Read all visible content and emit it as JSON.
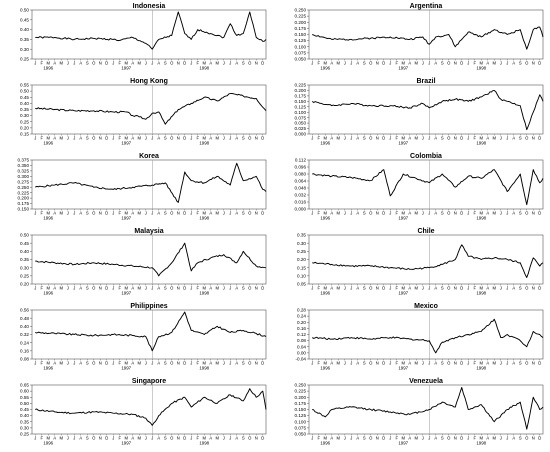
{
  "chart_data": [
    {
      "type": "line",
      "title": "Indonesia",
      "yticks": [
        "0.50",
        "0.45",
        "0.40",
        "0.35",
        "0.30",
        "0.25"
      ],
      "ylim": [
        0.25,
        0.5
      ],
      "months": [
        "J",
        "F",
        "M",
        "A",
        "M",
        "J",
        "J",
        "A",
        "S",
        "O",
        "N",
        "D",
        "J",
        "F",
        "M",
        "A",
        "M",
        "J",
        "J",
        "A",
        "S",
        "O",
        "N",
        "D",
        "J",
        "F",
        "M",
        "A",
        "M",
        "J",
        "J",
        "A",
        "S",
        "O",
        "N",
        "D"
      ],
      "years": [
        "1996",
        "1997",
        "1998"
      ],
      "x": [
        0,
        3,
        6,
        9,
        12,
        13,
        15,
        17,
        18,
        19,
        21,
        22,
        23,
        24,
        25,
        27,
        29,
        30,
        31,
        32,
        33,
        34,
        35,
        35.5
      ],
      "values": [
        0.36,
        0.36,
        0.35,
        0.355,
        0.35,
        0.345,
        0.36,
        0.33,
        0.3,
        0.35,
        0.37,
        0.49,
        0.38,
        0.35,
        0.4,
        0.38,
        0.36,
        0.43,
        0.37,
        0.38,
        0.49,
        0.36,
        0.34,
        0.35
      ]
    },
    {
      "type": "line",
      "title": "Argentina",
      "yticks": [
        "0.250",
        "0.225",
        "0.200",
        "0.175",
        "0.150",
        "0.125",
        "0.100",
        "0.075",
        "0.050"
      ],
      "ylim": [
        0.05,
        0.25
      ],
      "months": [
        "J",
        "F",
        "M",
        "A",
        "M",
        "J",
        "J",
        "A",
        "S",
        "O",
        "N",
        "D",
        "J",
        "F",
        "M",
        "A",
        "M",
        "J",
        "J",
        "A",
        "S",
        "O",
        "N",
        "D",
        "J",
        "F",
        "M",
        "A",
        "M",
        "J",
        "J",
        "A",
        "S",
        "O",
        "N",
        "D"
      ],
      "years": [
        "1996",
        "1997",
        "1998"
      ],
      "x": [
        0,
        3,
        6,
        9,
        12,
        15,
        17,
        18,
        19,
        21,
        22,
        24,
        26,
        28,
        30,
        32,
        33,
        34,
        35,
        35.5
      ],
      "values": [
        0.15,
        0.13,
        0.13,
        0.135,
        0.14,
        0.13,
        0.14,
        0.11,
        0.14,
        0.15,
        0.1,
        0.16,
        0.14,
        0.17,
        0.15,
        0.17,
        0.09,
        0.17,
        0.18,
        0.14
      ]
    },
    {
      "type": "line",
      "title": "Hong Kong",
      "yticks": [
        "0.55",
        "0.50",
        "0.45",
        "0.40",
        "0.35",
        "0.30",
        "0.25",
        "0.20",
        "0.15"
      ],
      "ylim": [
        0.15,
        0.55
      ],
      "months": [
        "J",
        "F",
        "M",
        "A",
        "M",
        "J",
        "J",
        "A",
        "S",
        "O",
        "N",
        "D",
        "J",
        "F",
        "M",
        "A",
        "M",
        "J",
        "J",
        "A",
        "S",
        "O",
        "N",
        "D",
        "J",
        "F",
        "M",
        "A",
        "M",
        "J",
        "J",
        "A",
        "S",
        "O",
        "N",
        "D"
      ],
      "years": [
        "1996",
        "1997",
        "1998"
      ],
      "x": [
        0,
        3,
        6,
        9,
        12,
        14,
        15,
        16,
        17,
        18,
        19,
        20,
        22,
        24,
        26,
        28,
        30,
        32,
        34,
        35.5
      ],
      "values": [
        0.36,
        0.35,
        0.34,
        0.34,
        0.33,
        0.33,
        0.3,
        0.29,
        0.27,
        0.32,
        0.33,
        0.23,
        0.35,
        0.4,
        0.45,
        0.42,
        0.48,
        0.46,
        0.44,
        0.34
      ]
    },
    {
      "type": "line",
      "title": "Brazil",
      "yticks": [
        "0.225",
        "0.200",
        "0.175",
        "0.150",
        "0.125",
        "0.100",
        "0.075",
        "0.050",
        "0.025",
        "0.000"
      ],
      "ylim": [
        0.0,
        0.225
      ],
      "months": [
        "J",
        "F",
        "M",
        "A",
        "M",
        "J",
        "J",
        "A",
        "S",
        "O",
        "N",
        "D",
        "J",
        "F",
        "M",
        "A",
        "M",
        "J",
        "J",
        "A",
        "S",
        "O",
        "N",
        "D",
        "J",
        "F",
        "M",
        "A",
        "M",
        "J",
        "J",
        "A",
        "S",
        "O",
        "N",
        "D"
      ],
      "years": [
        "1996",
        "1997",
        "1998"
      ],
      "x": [
        0,
        3,
        6,
        9,
        12,
        15,
        17,
        18,
        20,
        22,
        24,
        26,
        28,
        29,
        30,
        32,
        33,
        34,
        35,
        35.5
      ],
      "values": [
        0.15,
        0.13,
        0.14,
        0.13,
        0.13,
        0.12,
        0.14,
        0.12,
        0.15,
        0.16,
        0.15,
        0.17,
        0.2,
        0.16,
        0.15,
        0.13,
        0.02,
        0.1,
        0.18,
        0.15
      ]
    },
    {
      "type": "line",
      "title": "Korea",
      "yticks": [
        "0.375",
        "0.350",
        "0.325",
        "0.300",
        "0.275",
        "0.250",
        "0.225",
        "0.200",
        "0.175",
        "0.150"
      ],
      "ylim": [
        0.15,
        0.375
      ],
      "months": [
        "J",
        "F",
        "M",
        "A",
        "M",
        "J",
        "J",
        "A",
        "S",
        "O",
        "N",
        "D",
        "J",
        "F",
        "M",
        "A",
        "M",
        "J",
        "J",
        "A",
        "S",
        "O",
        "N",
        "D",
        "J",
        "F",
        "M",
        "A",
        "M",
        "J",
        "J",
        "A",
        "S",
        "O",
        "N",
        "D"
      ],
      "years": [
        "1996",
        "1997",
        "1998"
      ],
      "x": [
        0,
        3,
        6,
        9,
        12,
        15,
        18,
        20,
        22,
        23,
        24,
        26,
        28,
        30,
        31,
        32,
        34,
        35,
        35.5
      ],
      "values": [
        0.25,
        0.26,
        0.27,
        0.25,
        0.24,
        0.25,
        0.26,
        0.27,
        0.18,
        0.32,
        0.28,
        0.27,
        0.3,
        0.26,
        0.36,
        0.28,
        0.3,
        0.24,
        0.23
      ]
    },
    {
      "type": "line",
      "title": "Colombia",
      "yticks": [
        "0.112",
        "0.096",
        "0.080",
        "0.064",
        "0.048",
        "0.032",
        "0.016",
        "0.000"
      ],
      "ylim": [
        0.0,
        0.112
      ],
      "months": [
        "J",
        "F",
        "M",
        "A",
        "M",
        "J",
        "J",
        "A",
        "S",
        "O",
        "N",
        "D",
        "J",
        "F",
        "M",
        "A",
        "M",
        "J",
        "J",
        "A",
        "S",
        "O",
        "N",
        "D",
        "J",
        "F",
        "M",
        "A",
        "M",
        "J",
        "J",
        "A",
        "S",
        "O",
        "N",
        "D"
      ],
      "years": [
        "1996",
        "1997",
        "1998"
      ],
      "x": [
        0,
        3,
        6,
        9,
        11,
        12,
        14,
        16,
        18,
        20,
        22,
        24,
        26,
        28,
        30,
        32,
        33,
        34,
        35,
        35.5
      ],
      "values": [
        0.08,
        0.075,
        0.072,
        0.065,
        0.09,
        0.03,
        0.08,
        0.07,
        0.06,
        0.08,
        0.05,
        0.075,
        0.07,
        0.09,
        0.04,
        0.08,
        0.01,
        0.09,
        0.06,
        0.07
      ]
    },
    {
      "type": "line",
      "title": "Malaysia",
      "yticks": [
        "0.50",
        "0.45",
        "0.40",
        "0.35",
        "0.30",
        "0.25",
        "0.20"
      ],
      "ylim": [
        0.2,
        0.5
      ],
      "months": [
        "J",
        "F",
        "M",
        "A",
        "M",
        "J",
        "J",
        "A",
        "S",
        "O",
        "N",
        "D",
        "J",
        "F",
        "M",
        "A",
        "M",
        "J",
        "J",
        "A",
        "S",
        "O",
        "N",
        "D",
        "J",
        "F",
        "M",
        "A",
        "M",
        "J",
        "J",
        "A",
        "S",
        "O",
        "N",
        "D"
      ],
      "years": [
        "1996",
        "1997",
        "1998"
      ],
      "x": [
        0,
        3,
        6,
        9,
        12,
        15,
        18,
        19,
        21,
        23,
        24,
        25,
        27,
        29,
        31,
        32,
        34,
        35.5
      ],
      "values": [
        0.34,
        0.33,
        0.32,
        0.33,
        0.32,
        0.31,
        0.3,
        0.25,
        0.33,
        0.45,
        0.28,
        0.33,
        0.36,
        0.38,
        0.33,
        0.4,
        0.31,
        0.3
      ]
    },
    {
      "type": "line",
      "title": "Chile",
      "yticks": [
        "0.35",
        "0.30",
        "0.25",
        "0.20",
        "0.15",
        "0.10",
        "0.05"
      ],
      "ylim": [
        0.05,
        0.35
      ],
      "months": [
        "J",
        "F",
        "M",
        "A",
        "M",
        "J",
        "J",
        "A",
        "S",
        "O",
        "N",
        "D",
        "J",
        "F",
        "M",
        "A",
        "M",
        "J",
        "J",
        "A",
        "S",
        "O",
        "N",
        "D",
        "J",
        "F",
        "M",
        "A",
        "M",
        "J",
        "J",
        "A",
        "S",
        "O",
        "N",
        "D"
      ],
      "years": [
        "1996",
        "1997",
        "1998"
      ],
      "x": [
        0,
        3,
        6,
        9,
        12,
        15,
        18,
        20,
        22,
        23,
        24,
        26,
        28,
        30,
        32,
        33,
        34,
        35,
        35.5
      ],
      "values": [
        0.18,
        0.17,
        0.16,
        0.16,
        0.15,
        0.14,
        0.15,
        0.17,
        0.2,
        0.29,
        0.22,
        0.2,
        0.21,
        0.2,
        0.18,
        0.09,
        0.21,
        0.16,
        0.18
      ]
    },
    {
      "type": "line",
      "title": "Philippines",
      "yticks": [
        "0.56",
        "0.48",
        "0.40",
        "0.32",
        "0.24",
        "0.16",
        "0.08"
      ],
      "ylim": [
        0.08,
        0.56
      ],
      "months": [
        "J",
        "F",
        "M",
        "A",
        "M",
        "J",
        "J",
        "A",
        "S",
        "O",
        "N",
        "D",
        "J",
        "F",
        "M",
        "A",
        "M",
        "J",
        "J",
        "A",
        "S",
        "O",
        "N",
        "D",
        "J",
        "F",
        "M",
        "A",
        "M",
        "J",
        "J",
        "A",
        "S",
        "O",
        "N",
        "D"
      ],
      "years": [
        "1996",
        "1997",
        "1998"
      ],
      "x": [
        0,
        3,
        6,
        9,
        12,
        15,
        17,
        18,
        19,
        21,
        23,
        24,
        26,
        28,
        30,
        32,
        34,
        35.5
      ],
      "values": [
        0.34,
        0.33,
        0.32,
        0.31,
        0.32,
        0.31,
        0.3,
        0.16,
        0.3,
        0.34,
        0.54,
        0.36,
        0.32,
        0.4,
        0.34,
        0.36,
        0.33,
        0.3
      ]
    },
    {
      "type": "line",
      "title": "Mexico",
      "yticks": [
        "0.28",
        "0.24",
        "0.20",
        "0.16",
        "0.12",
        "0.08",
        "0.04",
        "0.00",
        "-0.04"
      ],
      "ylim": [
        -0.04,
        0.28
      ],
      "months": [
        "J",
        "F",
        "M",
        "A",
        "M",
        "J",
        "J",
        "A",
        "S",
        "O",
        "N",
        "D",
        "J",
        "F",
        "M",
        "A",
        "M",
        "J",
        "J",
        "A",
        "S",
        "O",
        "N",
        "D",
        "J",
        "F",
        "M",
        "A",
        "M",
        "J",
        "J",
        "A",
        "S",
        "O",
        "N",
        "D"
      ],
      "years": [
        "1996",
        "1997",
        "1998"
      ],
      "x": [
        0,
        3,
        6,
        9,
        12,
        15,
        18,
        19,
        20,
        22,
        24,
        26,
        28,
        29,
        30,
        32,
        33,
        34,
        35,
        35.5
      ],
      "values": [
        0.1,
        0.09,
        0.1,
        0.09,
        0.1,
        0.09,
        0.08,
        0.0,
        0.07,
        0.1,
        0.12,
        0.14,
        0.22,
        0.1,
        0.12,
        0.08,
        0.04,
        0.14,
        0.12,
        0.1
      ]
    },
    {
      "type": "line",
      "title": "Singapore",
      "yticks": [
        "0.65",
        "0.60",
        "0.55",
        "0.50",
        "0.45",
        "0.40",
        "0.35",
        "0.30",
        "0.25"
      ],
      "ylim": [
        0.25,
        0.65
      ],
      "months": [
        "J",
        "F",
        "M",
        "A",
        "M",
        "J",
        "J",
        "A",
        "S",
        "O",
        "N",
        "D",
        "J",
        "F",
        "M",
        "A",
        "M",
        "J",
        "J",
        "A",
        "S",
        "O",
        "N",
        "D",
        "J",
        "F",
        "M",
        "A",
        "M",
        "J",
        "J",
        "A",
        "S",
        "O",
        "N",
        "D"
      ],
      "years": [
        "1996",
        "1997",
        "1998"
      ],
      "x": [
        0,
        3,
        6,
        9,
        12,
        15,
        17,
        18,
        19,
        21,
        23,
        24,
        26,
        28,
        30,
        32,
        33,
        34,
        35,
        35.5
      ],
      "values": [
        0.45,
        0.43,
        0.42,
        0.43,
        0.42,
        0.41,
        0.38,
        0.32,
        0.4,
        0.5,
        0.55,
        0.47,
        0.55,
        0.5,
        0.57,
        0.52,
        0.62,
        0.55,
        0.6,
        0.45
      ]
    },
    {
      "type": "line",
      "title": "Venezuela",
      "yticks": [
        "0.250",
        "0.225",
        "0.200",
        "0.175",
        "0.150",
        "0.125",
        "0.100",
        "0.075",
        "0.050"
      ],
      "ylim": [
        0.05,
        0.25
      ],
      "months": [
        "J",
        "F",
        "M",
        "A",
        "M",
        "J",
        "J",
        "A",
        "S",
        "O",
        "N",
        "D",
        "J",
        "F",
        "M",
        "A",
        "M",
        "J",
        "J",
        "A",
        "S",
        "O",
        "N",
        "D",
        "J",
        "F",
        "M",
        "A",
        "M",
        "J",
        "J",
        "A",
        "S",
        "O",
        "N",
        "D"
      ],
      "years": [
        "1996",
        "1997",
        "1998"
      ],
      "x": [
        0,
        2,
        3,
        6,
        9,
        12,
        15,
        18,
        20,
        22,
        23,
        24,
        26,
        28,
        30,
        32,
        33,
        34,
        35,
        35.5
      ],
      "values": [
        0.15,
        0.12,
        0.15,
        0.16,
        0.15,
        0.14,
        0.13,
        0.15,
        0.18,
        0.16,
        0.24,
        0.15,
        0.17,
        0.1,
        0.15,
        0.18,
        0.07,
        0.2,
        0.15,
        0.16
      ]
    }
  ]
}
